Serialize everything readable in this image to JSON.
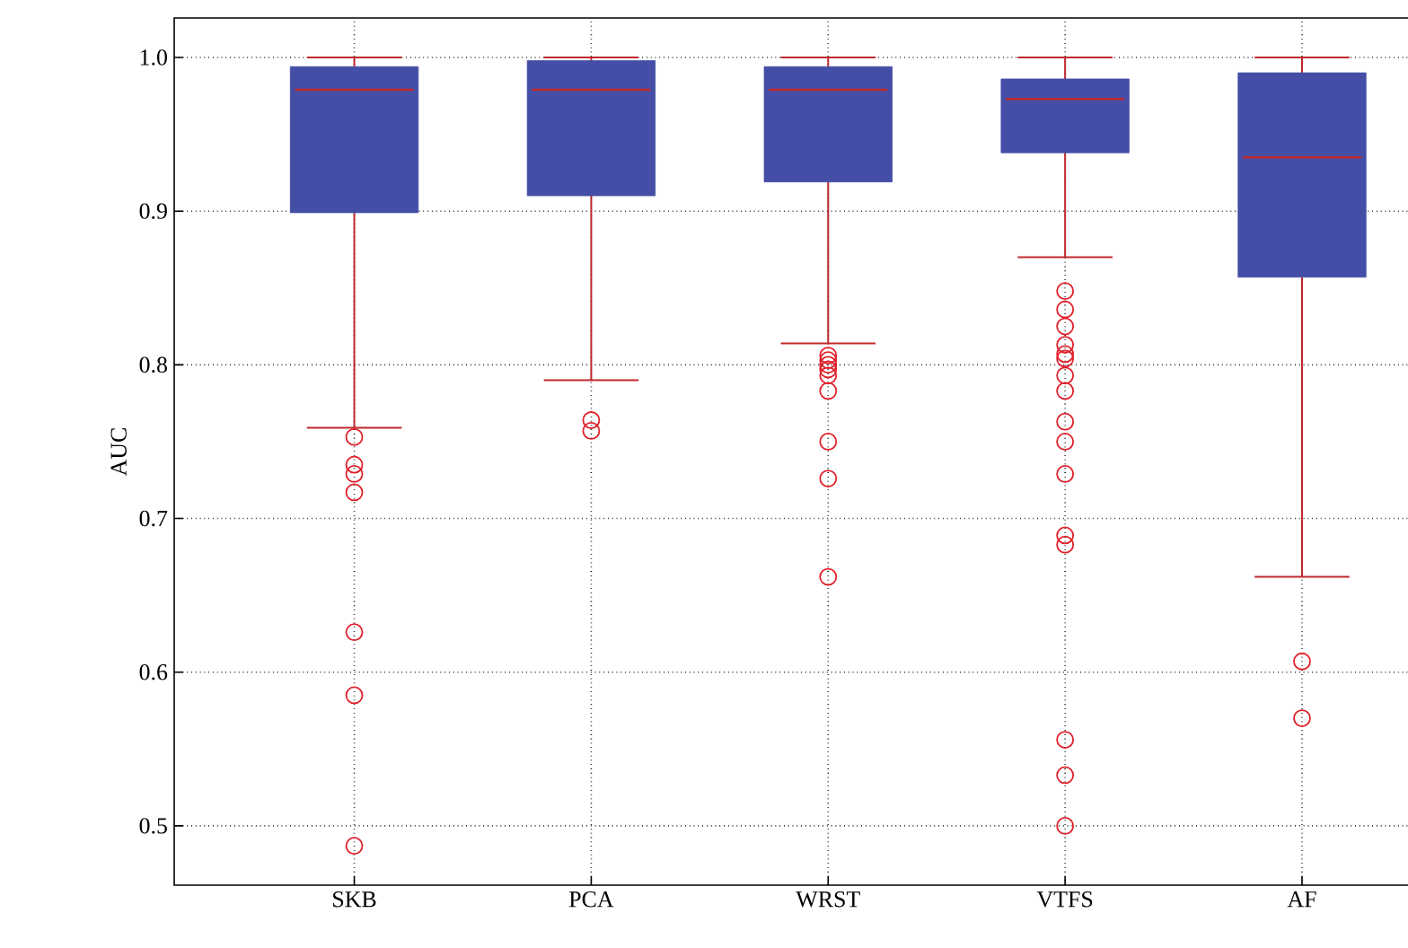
{
  "chart_data": {
    "type": "box",
    "ylabel": "AUC",
    "categories": [
      "SKB",
      "PCA",
      "WRST",
      "VTFS",
      "AF"
    ],
    "color": "#444ea6",
    "boxes": [
      {
        "low": 0.759,
        "q1": 0.899,
        "median": 0.979,
        "q3": 0.994,
        "high": 1.0,
        "outliers": [
          0.753,
          0.735,
          0.729,
          0.717,
          0.626,
          0.585,
          0.487
        ]
      },
      {
        "low": 0.79,
        "q1": 0.91,
        "median": 0.979,
        "q3": 0.998,
        "high": 1.0,
        "outliers": [
          0.764,
          0.757
        ]
      },
      {
        "low": 0.814,
        "q1": 0.919,
        "median": 0.979,
        "q3": 0.994,
        "high": 1.0,
        "outliers": [
          0.806,
          0.803,
          0.8,
          0.797,
          0.793,
          0.783,
          0.75,
          0.726,
          0.662
        ]
      },
      {
        "low": 0.87,
        "q1": 0.938,
        "median": 0.973,
        "q3": 0.986,
        "high": 1.0,
        "outliers": [
          0.848,
          0.836,
          0.825,
          0.813,
          0.807,
          0.804,
          0.793,
          0.783,
          0.763,
          0.75,
          0.729,
          0.689,
          0.683,
          0.556,
          0.533,
          0.5
        ]
      },
      {
        "low": 0.662,
        "q1": 0.857,
        "median": 0.935,
        "q3": 0.99,
        "high": 1.0,
        "outliers": [
          0.607,
          0.57
        ]
      }
    ],
    "ylim": [
      0.4614,
      1.0257
    ],
    "yticks": [
      0.5,
      0.6,
      0.7,
      0.8,
      0.9,
      {
        "value": 1.0,
        "label": "1.0"
      }
    ],
    "grid": true,
    "marker": "circle"
  }
}
